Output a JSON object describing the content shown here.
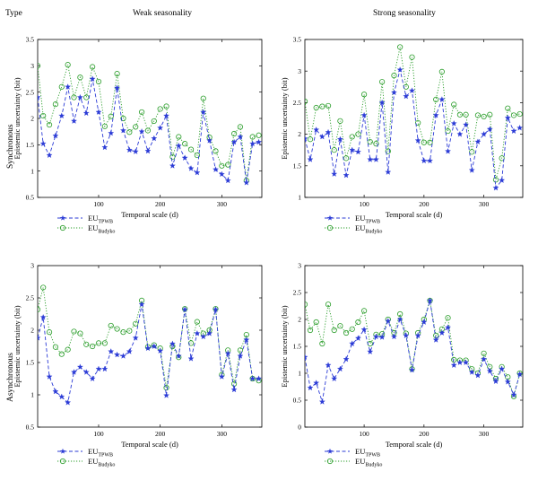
{
  "headers": {
    "type_label": "Type",
    "col_left": "Weak seasonality",
    "col_right": "Strong seasonality",
    "row_top": "Synchronous",
    "row_bottom": "Asynchronous"
  },
  "colors": {
    "tpwb": "#2b3bd6",
    "budyko": "#2a9d2a"
  },
  "chart_data": [
    {
      "id": "sync-weak",
      "type": "line",
      "xlabel": "Temporal scale (d)",
      "ylabel": "Epistemic uncertainty (bit)",
      "xlim": [
        1,
        365
      ],
      "ylim": [
        0.5,
        3.5
      ],
      "xticks": [
        100,
        200,
        300
      ],
      "yticks": [
        0.5,
        1,
        1.5,
        2,
        2.5,
        3,
        3.5
      ],
      "legend_position": "bottom-left",
      "series": [
        {
          "name": "EU",
          "subscript": "TPWB",
          "style": "dashed-star",
          "x": [
            1,
            10,
            20,
            30,
            40,
            50,
            60,
            70,
            80,
            90,
            100,
            110,
            120,
            130,
            140,
            150,
            160,
            170,
            180,
            190,
            200,
            210,
            220,
            230,
            240,
            250,
            260,
            270,
            280,
            290,
            300,
            310,
            320,
            330,
            340,
            350,
            360
          ],
          "y": [
            2.4,
            1.52,
            1.3,
            1.67,
            2.05,
            2.6,
            1.95,
            2.4,
            2.1,
            2.75,
            2.12,
            1.45,
            1.72,
            2.58,
            1.77,
            1.4,
            1.37,
            1.75,
            1.38,
            1.62,
            1.82,
            2.05,
            1.1,
            1.48,
            1.25,
            1.05,
            0.97,
            2.12,
            1.58,
            1.03,
            0.94,
            0.82,
            1.55,
            1.65,
            0.78,
            1.52,
            1.55
          ]
        },
        {
          "name": "EU",
          "subscript": "Budyko",
          "style": "dotted-circle",
          "x": [
            1,
            10,
            20,
            30,
            40,
            50,
            60,
            70,
            80,
            90,
            100,
            110,
            120,
            130,
            140,
            150,
            160,
            170,
            180,
            190,
            200,
            210,
            220,
            230,
            240,
            250,
            260,
            270,
            280,
            290,
            300,
            310,
            320,
            330,
            340,
            350,
            360
          ],
          "y": [
            3.0,
            2.05,
            1.88,
            2.27,
            2.6,
            3.02,
            2.4,
            2.78,
            2.4,
            2.98,
            2.7,
            1.85,
            2.04,
            2.85,
            2.0,
            1.74,
            1.84,
            2.12,
            1.77,
            1.95,
            2.18,
            2.23,
            1.27,
            1.65,
            1.52,
            1.41,
            1.3,
            2.38,
            1.64,
            1.38,
            1.1,
            1.12,
            1.71,
            1.84,
            0.82,
            1.65,
            1.68
          ]
        }
      ]
    },
    {
      "id": "sync-strong",
      "type": "line",
      "xlabel": "Temporal scale (d)",
      "ylabel": "Epistemic uncertainty (bit)",
      "xlim": [
        1,
        365
      ],
      "ylim": [
        1,
        3.5
      ],
      "xticks": [
        100,
        200,
        300
      ],
      "yticks": [
        1,
        1.5,
        2,
        2.5,
        3,
        3.5
      ],
      "legend_position": "bottom-left",
      "series": [
        {
          "name": "EU",
          "subscript": "TPWB",
          "style": "dashed-star",
          "x": [
            1,
            10,
            20,
            30,
            40,
            50,
            60,
            70,
            80,
            90,
            100,
            110,
            120,
            130,
            140,
            150,
            160,
            170,
            180,
            190,
            200,
            210,
            220,
            230,
            240,
            250,
            260,
            270,
            280,
            290,
            300,
            310,
            320,
            330,
            340,
            350,
            360
          ],
          "y": [
            1.93,
            1.6,
            2.07,
            1.96,
            2.03,
            1.37,
            1.92,
            1.35,
            1.75,
            1.72,
            2.3,
            1.6,
            1.6,
            2.5,
            1.4,
            2.66,
            3.02,
            2.6,
            2.69,
            1.9,
            1.58,
            1.58,
            2.3,
            2.55,
            1.73,
            2.17,
            2.0,
            2.15,
            1.43,
            1.88,
            2.0,
            2.08,
            1.15,
            1.27,
            2.26,
            2.05,
            2.1
          ]
        },
        {
          "name": "EU",
          "subscript": "Budyko",
          "style": "dotted-circle",
          "x": [
            1,
            10,
            20,
            30,
            40,
            50,
            60,
            70,
            80,
            90,
            100,
            110,
            120,
            130,
            140,
            150,
            160,
            170,
            180,
            190,
            200,
            210,
            220,
            230,
            240,
            250,
            260,
            270,
            280,
            290,
            300,
            310,
            320,
            330,
            340,
            350,
            360
          ],
          "y": [
            2.52,
            1.92,
            2.42,
            2.44,
            2.45,
            1.75,
            2.21,
            1.62,
            1.96,
            2.0,
            2.63,
            1.88,
            1.85,
            2.83,
            1.73,
            2.93,
            3.38,
            2.75,
            3.22,
            2.18,
            1.87,
            1.87,
            2.55,
            2.99,
            2.05,
            2.47,
            2.31,
            2.31,
            1.72,
            2.3,
            2.28,
            2.31,
            1.28,
            1.62,
            2.41,
            2.3,
            2.32
          ]
        }
      ]
    },
    {
      "id": "async-weak",
      "type": "line",
      "xlabel": "Temporal scale (d)",
      "ylabel": "Epistemic uncertainty (bit)",
      "xlim": [
        1,
        365
      ],
      "ylim": [
        0.5,
        3
      ],
      "xticks": [
        100,
        200,
        300
      ],
      "yticks": [
        0.5,
        1,
        1.5,
        2,
        2.5,
        3
      ],
      "legend_position": "bottom-left",
      "series": [
        {
          "name": "EU",
          "subscript": "TPWB",
          "style": "dashed-star",
          "x": [
            1,
            10,
            20,
            30,
            40,
            50,
            60,
            70,
            80,
            90,
            100,
            110,
            120,
            130,
            140,
            150,
            160,
            170,
            180,
            190,
            200,
            210,
            220,
            230,
            240,
            250,
            260,
            270,
            280,
            290,
            300,
            310,
            320,
            330,
            340,
            350,
            360
          ],
          "y": [
            1.88,
            2.2,
            1.28,
            1.05,
            0.97,
            0.88,
            1.35,
            1.43,
            1.35,
            1.25,
            1.4,
            1.4,
            1.67,
            1.62,
            1.6,
            1.67,
            1.88,
            2.4,
            1.72,
            1.75,
            1.68,
            0.99,
            1.79,
            1.6,
            2.32,
            1.56,
            1.95,
            1.9,
            1.95,
            2.32,
            1.28,
            1.64,
            1.08,
            1.6,
            1.85,
            1.25,
            1.25
          ]
        },
        {
          "name": "EU",
          "subscript": "Budyko",
          "style": "dotted-circle",
          "x": [
            1,
            10,
            20,
            30,
            40,
            50,
            60,
            70,
            80,
            90,
            100,
            110,
            120,
            130,
            140,
            150,
            160,
            170,
            180,
            190,
            200,
            210,
            220,
            230,
            240,
            250,
            260,
            270,
            280,
            290,
            300,
            310,
            320,
            330,
            340,
            350,
            360
          ],
          "y": [
            2.32,
            2.66,
            1.97,
            1.74,
            1.63,
            1.7,
            1.98,
            1.95,
            1.78,
            1.75,
            1.8,
            1.8,
            2.07,
            2.02,
            1.97,
            1.99,
            2.1,
            2.46,
            1.74,
            1.77,
            1.72,
            1.11,
            1.75,
            1.58,
            2.33,
            1.8,
            2.13,
            1.95,
            2.0,
            2.33,
            1.31,
            1.69,
            1.17,
            1.69,
            1.93,
            1.25,
            1.22
          ]
        }
      ]
    },
    {
      "id": "async-strong",
      "type": "line",
      "xlabel": "Temporal scale (d)",
      "ylabel": "Epistemic uncertainty (bit)",
      "xlim": [
        1,
        365
      ],
      "ylim": [
        0,
        3
      ],
      "xticks": [
        100,
        200,
        300
      ],
      "yticks": [
        0,
        0.5,
        1,
        1.5,
        2,
        2.5,
        3
      ],
      "legend_position": "bottom-left",
      "series": [
        {
          "name": "EU",
          "subscript": "TPWB",
          "style": "dashed-star",
          "x": [
            1,
            10,
            20,
            30,
            40,
            50,
            60,
            70,
            80,
            90,
            100,
            110,
            120,
            130,
            140,
            150,
            160,
            170,
            180,
            190,
            200,
            210,
            220,
            230,
            240,
            250,
            260,
            270,
            280,
            290,
            300,
            310,
            320,
            330,
            340,
            350,
            360
          ],
          "y": [
            1.3,
            0.73,
            0.82,
            0.47,
            1.15,
            0.9,
            1.08,
            1.26,
            1.55,
            1.65,
            1.81,
            1.4,
            1.68,
            1.67,
            1.97,
            1.68,
            2.0,
            1.7,
            1.06,
            1.7,
            1.95,
            2.35,
            1.62,
            1.75,
            1.85,
            1.15,
            1.2,
            1.2,
            1.02,
            0.96,
            1.26,
            1.04,
            0.85,
            1.08,
            0.84,
            0.6,
            0.98
          ]
        },
        {
          "name": "EU",
          "subscript": "Budyko",
          "style": "dotted-circle",
          "x": [
            1,
            10,
            20,
            30,
            40,
            50,
            60,
            70,
            80,
            90,
            100,
            110,
            120,
            130,
            140,
            150,
            160,
            170,
            180,
            190,
            200,
            210,
            220,
            230,
            240,
            250,
            260,
            270,
            280,
            290,
            300,
            310,
            320,
            330,
            340,
            350,
            360
          ],
          "y": [
            2.28,
            1.8,
            1.95,
            1.55,
            2.28,
            1.8,
            1.88,
            1.75,
            1.82,
            1.95,
            2.16,
            1.55,
            1.72,
            1.73,
            2.0,
            1.75,
            2.1,
            1.74,
            1.08,
            1.75,
            2.0,
            2.35,
            1.7,
            1.82,
            2.03,
            1.25,
            1.24,
            1.24,
            1.08,
            1.0,
            1.37,
            1.12,
            0.9,
            1.12,
            0.93,
            0.57,
            1.0
          ]
        }
      ]
    }
  ]
}
